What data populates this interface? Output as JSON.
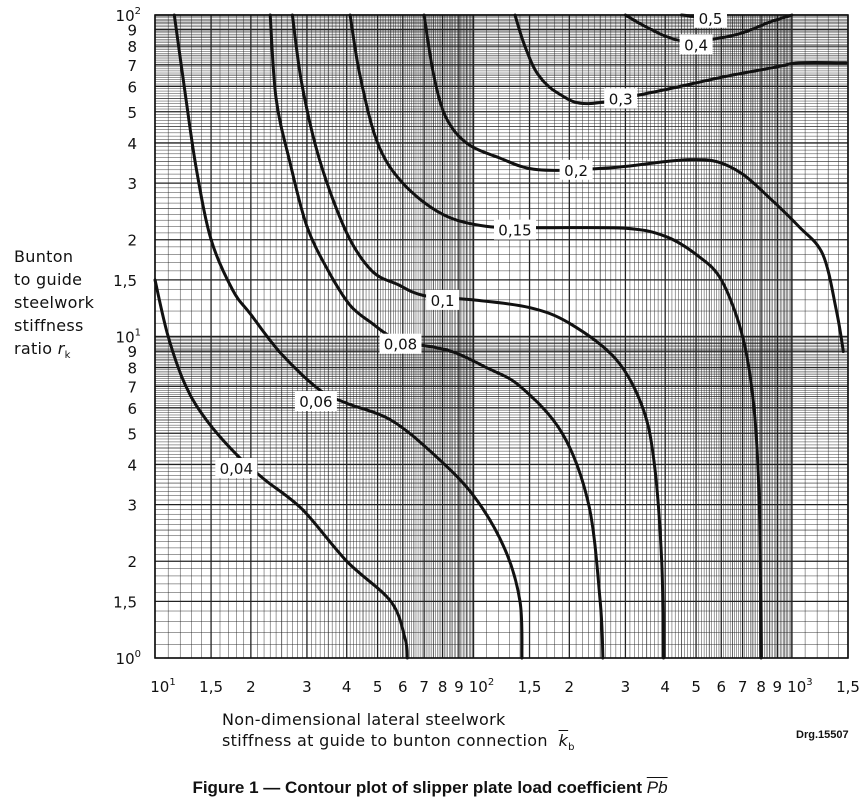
{
  "chart_data": {
    "type": "line",
    "x_scale": "log",
    "y_scale": "log",
    "xlim": [
      10,
      1500
    ],
    "ylim": [
      1,
      100
    ],
    "grid": true,
    "legend": "none",
    "x_tick_labels": [
      {
        "v": 10,
        "t": "10",
        "sup": "1"
      },
      {
        "v": 15,
        "t": "1,5"
      },
      {
        "v": 20,
        "t": "2"
      },
      {
        "v": 30,
        "t": "3"
      },
      {
        "v": 40,
        "t": "4"
      },
      {
        "v": 50,
        "t": "5"
      },
      {
        "v": 60,
        "t": "6"
      },
      {
        "v": 70,
        "t": "7"
      },
      {
        "v": 80,
        "t": "8"
      },
      {
        "v": 90,
        "t": "9"
      },
      {
        "v": 100,
        "t": "10",
        "sup": "2"
      },
      {
        "v": 150,
        "t": "1,5"
      },
      {
        "v": 200,
        "t": "2"
      },
      {
        "v": 300,
        "t": "3"
      },
      {
        "v": 400,
        "t": "4"
      },
      {
        "v": 500,
        "t": "5"
      },
      {
        "v": 600,
        "t": "6"
      },
      {
        "v": 700,
        "t": "7"
      },
      {
        "v": 800,
        "t": "8"
      },
      {
        "v": 900,
        "t": "9"
      },
      {
        "v": 1000,
        "t": "10",
        "sup": "3"
      },
      {
        "v": 1500,
        "t": "1,5"
      }
    ],
    "y_tick_labels": [
      {
        "v": 1,
        "t": "10",
        "sup": "0"
      },
      {
        "v": 1.5,
        "t": "1,5"
      },
      {
        "v": 2,
        "t": "2"
      },
      {
        "v": 3,
        "t": "3"
      },
      {
        "v": 4,
        "t": "4"
      },
      {
        "v": 5,
        "t": "5"
      },
      {
        "v": 6,
        "t": "6"
      },
      {
        "v": 7,
        "t": "7"
      },
      {
        "v": 8,
        "t": "8"
      },
      {
        "v": 9,
        "t": "9"
      },
      {
        "v": 10,
        "t": "10",
        "sup": "1"
      },
      {
        "v": 15,
        "t": "1,5"
      },
      {
        "v": 20,
        "t": "2"
      },
      {
        "v": 30,
        "t": "3"
      },
      {
        "v": 40,
        "t": "4"
      },
      {
        "v": 50,
        "t": "5"
      },
      {
        "v": 60,
        "t": "6"
      },
      {
        "v": 70,
        "t": "7"
      },
      {
        "v": 80,
        "t": "8"
      },
      {
        "v": 90,
        "t": "9"
      },
      {
        "v": 100,
        "t": "10",
        "sup": "2"
      }
    ],
    "ylabel_lines": [
      "Bunton",
      "to guide",
      "steelwork",
      "stiffness",
      "ratio"
    ],
    "ylabel_symbol": "r",
    "ylabel_symbol_sub": "k",
    "xlabel_lines": [
      "Non-dimensional lateral steelwork",
      "stiffness at guide to bunton connection"
    ],
    "xlabel_symbol": "k",
    "xlabel_symbol_sub": "b",
    "series": [
      {
        "label": "0,04",
        "label_at": [
          18,
          3.9
        ],
        "points": [
          [
            10,
            15
          ],
          [
            11,
            10
          ],
          [
            12.5,
            7
          ],
          [
            14.5,
            5.5
          ],
          [
            18,
            4.3
          ],
          [
            22,
            3.6
          ],
          [
            29,
            2.9
          ],
          [
            40,
            2
          ],
          [
            55,
            1.5
          ],
          [
            61,
            1.15
          ],
          [
            62,
            1
          ]
        ]
      },
      {
        "label": "0,06",
        "label_at": [
          32,
          6.3
        ],
        "points": [
          [
            11.5,
            100
          ],
          [
            12.5,
            55
          ],
          [
            13.5,
            33
          ],
          [
            15,
            20
          ],
          [
            17.5,
            14
          ],
          [
            20,
            11.7
          ],
          [
            25,
            8.8
          ],
          [
            33,
            6.8
          ],
          [
            40,
            6.2
          ],
          [
            55,
            5.5
          ],
          [
            75,
            4.3
          ],
          [
            100,
            3.2
          ],
          [
            125,
            2.2
          ],
          [
            140,
            1.5
          ],
          [
            142,
            1
          ]
        ]
      },
      {
        "label": "0,08",
        "label_at": [
          59,
          9.5
        ],
        "points": [
          [
            23,
            100
          ],
          [
            24,
            55
          ],
          [
            26.5,
            35
          ],
          [
            30,
            22
          ],
          [
            35,
            16
          ],
          [
            41,
            12.5
          ],
          [
            48,
            11
          ],
          [
            55,
            10
          ],
          [
            65,
            9.5
          ],
          [
            85,
            9
          ],
          [
            110,
            8
          ],
          [
            140,
            7
          ],
          [
            190,
            5
          ],
          [
            230,
            3
          ],
          [
            250,
            1.5
          ],
          [
            255,
            1
          ]
        ]
      },
      {
        "label": "0,1",
        "label_at": [
          80,
          13
        ],
        "points": [
          [
            27,
            100
          ],
          [
            29,
            60
          ],
          [
            33,
            35
          ],
          [
            40,
            21
          ],
          [
            48,
            16
          ],
          [
            58,
            14.5
          ],
          [
            70,
            13.4
          ],
          [
            100,
            13
          ],
          [
            150,
            12.3
          ],
          [
            200,
            11
          ],
          [
            280,
            8.5
          ],
          [
            340,
            6
          ],
          [
            370,
            4
          ],
          [
            390,
            2
          ],
          [
            395,
            1
          ]
        ]
      },
      {
        "label": "0,15",
        "label_at": [
          135,
          21.5
        ],
        "points": [
          [
            41,
            100
          ],
          [
            44,
            65
          ],
          [
            50,
            40
          ],
          [
            60,
            30
          ],
          [
            80,
            24
          ],
          [
            110,
            22
          ],
          [
            160,
            21.8
          ],
          [
            300,
            21.7
          ],
          [
            400,
            20.5
          ],
          [
            500,
            18
          ],
          [
            600,
            15
          ],
          [
            700,
            10
          ],
          [
            760,
            6
          ],
          [
            790,
            3
          ],
          [
            800,
            1
          ]
        ]
      },
      {
        "label": "0,2",
        "label_at": [
          210,
          33
        ],
        "points": [
          [
            70,
            100
          ],
          [
            75,
            65
          ],
          [
            82,
            48
          ],
          [
            95,
            40
          ],
          [
            120,
            36
          ],
          [
            160,
            33
          ],
          [
            270,
            33.5
          ],
          [
            400,
            35
          ],
          [
            480,
            35.5
          ],
          [
            580,
            35
          ],
          [
            700,
            32
          ],
          [
            850,
            27
          ],
          [
            1050,
            22
          ],
          [
            1250,
            18
          ],
          [
            1380,
            12
          ],
          [
            1450,
            9
          ]
        ]
      },
      {
        "label": "0,3",
        "label_at": [
          290,
          55
        ],
        "points": [
          [
            135,
            100
          ],
          [
            145,
            80
          ],
          [
            160,
            65
          ],
          [
            185,
            57
          ],
          [
            230,
            53
          ],
          [
            380,
            58
          ],
          [
            600,
            64
          ],
          [
            900,
            69
          ],
          [
            1050,
            71
          ],
          [
            1480,
            71
          ]
        ]
      },
      {
        "label": "0,4",
        "label_at": [
          500,
          81
        ],
        "points": [
          [
            300,
            100
          ],
          [
            340,
            93
          ],
          [
            400,
            86
          ],
          [
            460,
            83
          ],
          [
            560,
            84
          ],
          [
            700,
            88
          ],
          [
            850,
            95
          ],
          [
            1000,
            100
          ]
        ]
      },
      {
        "label": "0,5",
        "label_at": [
          555,
          98
        ],
        "points": [
          [
            450,
            100
          ],
          [
            490,
            99
          ],
          [
            520,
            98
          ]
        ]
      }
    ]
  },
  "drawing_ref": "Drg.15507",
  "caption": {
    "text": "Figure 1 — Contour plot of slipper plate load coefficient",
    "symbol": "Pb"
  }
}
